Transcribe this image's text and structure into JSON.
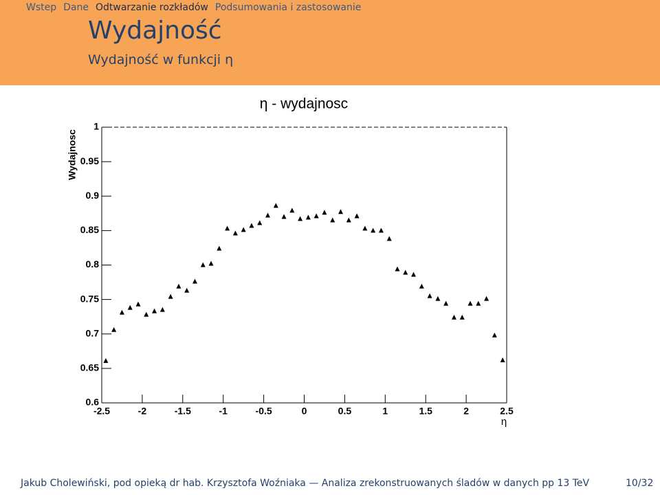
{
  "header": {
    "nav": [
      "Wstep",
      "Dane",
      "Odtwarzanie rozkładów",
      "Podsumowania i zastosowanie"
    ],
    "active_nav": 2,
    "title": "Wydajność",
    "subtitle": "Wydajność w funkcji η"
  },
  "footer": {
    "text": "Jakub Cholewiński, pod opieką dr hab. Krzysztofa Woźniaka — Analiza zrekonstruowanych śladów w danych pp 13 TeV",
    "page": "10/32"
  },
  "chart_data": {
    "type": "scatter",
    "title": "η - wydajnosc",
    "x_label": "η",
    "y_label": "Wydajnosc",
    "x": [
      -2.45,
      -2.35,
      -2.25,
      -2.15,
      -2.05,
      -1.95,
      -1.85,
      -1.75,
      -1.65,
      -1.55,
      -1.45,
      -1.35,
      -1.25,
      -1.15,
      -1.05,
      -0.95,
      -0.85,
      -0.75,
      -0.65,
      -0.55,
      -0.45,
      -0.35,
      -0.25,
      -0.15,
      -0.05,
      0.05,
      0.15,
      0.25,
      0.35,
      0.45,
      0.55,
      0.65,
      0.75,
      0.85,
      0.95,
      1.05,
      1.15,
      1.25,
      1.35,
      1.45,
      1.55,
      1.65,
      1.75,
      1.85,
      1.95,
      2.05,
      2.15,
      2.25,
      2.35,
      2.45
    ],
    "values": [
      0.661,
      0.706,
      0.731,
      0.738,
      0.743,
      0.728,
      0.733,
      0.735,
      0.754,
      0.769,
      0.763,
      0.776,
      0.8,
      0.802,
      0.824,
      0.853,
      0.846,
      0.851,
      0.857,
      0.861,
      0.872,
      0.886,
      0.87,
      0.879,
      0.867,
      0.869,
      0.871,
      0.876,
      0.865,
      0.877,
      0.865,
      0.871,
      0.853,
      0.85,
      0.85,
      0.838,
      0.794,
      0.789,
      0.786,
      0.769,
      0.755,
      0.751,
      0.744,
      0.724,
      0.724,
      0.744,
      0.744,
      0.751,
      0.698,
      0.662
    ],
    "color": "#000000",
    "xlim": [
      -2.5,
      2.5
    ],
    "xticks": [
      -2.5,
      -2,
      -1.5,
      -1,
      -0.5,
      0,
      0.5,
      1,
      1.5,
      2,
      2.5
    ],
    "ylim": [
      0.6,
      1
    ],
    "yticks": [
      0.6,
      0.65,
      0.7,
      0.75,
      0.8,
      0.85,
      0.9,
      0.95,
      1
    ]
  }
}
